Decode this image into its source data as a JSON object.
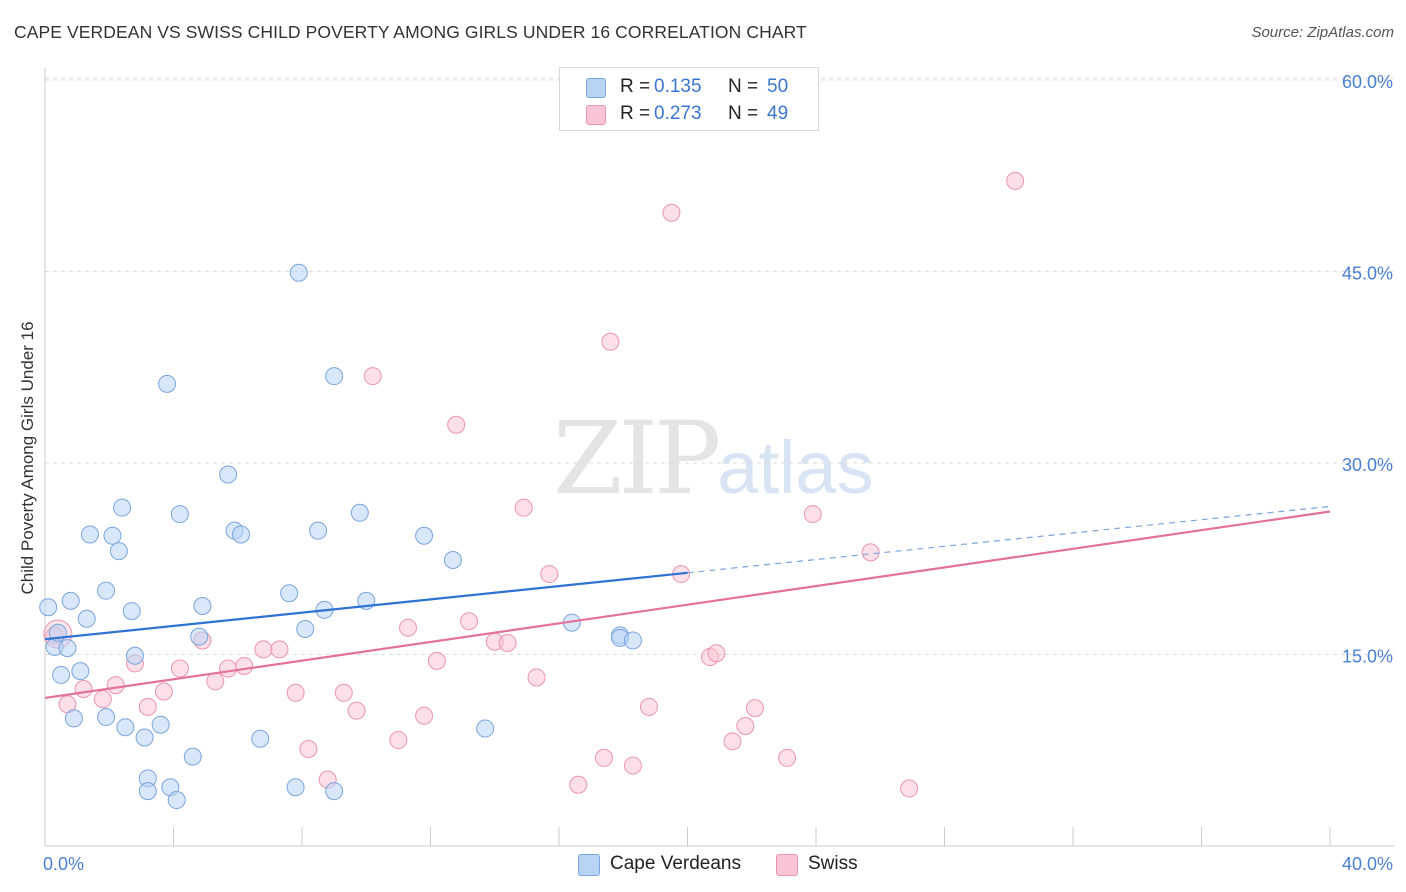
{
  "header": {
    "title": "CAPE VERDEAN VS SWISS CHILD POVERTY AMONG GIRLS UNDER 16 CORRELATION CHART",
    "source": "Source: ZipAtlas.com"
  },
  "watermark": {
    "zip": "ZIP",
    "atlas": "atlas"
  },
  "legend_top": [
    {
      "r_label": "R =",
      "r_value": "0.135",
      "n_label": "N =",
      "n_value": "50"
    },
    {
      "r_label": "R =",
      "r_value": "0.273",
      "n_label": "N =",
      "n_value": "49"
    }
  ],
  "legend_bottom": [
    {
      "label": "Cape Verdeans"
    },
    {
      "label": "Swiss"
    }
  ],
  "colors": {
    "blue_fill": "#b9d3f5",
    "blue_stroke": "#7aa5dd",
    "blue_line": "#2e72d2",
    "pink_fill": "#f9c4d4",
    "pink_stroke": "#ec95b1",
    "pink_line": "#e3729a",
    "tick": "#4a7fd1",
    "grid": "#dddddd"
  },
  "chart_data": {
    "type": "scatter",
    "ylabel": "Child Poverty Among Girls Under 16",
    "xlim": [
      0,
      40
    ],
    "ylim": [
      0,
      60
    ],
    "x_tick_labels": [
      "0.0%",
      "40.0%"
    ],
    "y_ticks": [
      15,
      30,
      45,
      60
    ],
    "y_tick_labels": [
      "15.0%",
      "30.0%",
      "45.0%",
      "60.0%"
    ],
    "grid": "horizontal dashed",
    "series": [
      {
        "name": "Cape Verdeans",
        "color": "#b9d3f5",
        "points": [
          [
            0.1,
            18.7
          ],
          [
            0.3,
            15.6
          ],
          [
            0.4,
            16.7
          ],
          [
            0.5,
            13.4
          ],
          [
            0.7,
            15.5
          ],
          [
            0.8,
            19.2
          ],
          [
            0.9,
            10.0
          ],
          [
            1.1,
            13.7
          ],
          [
            1.3,
            17.8
          ],
          [
            1.4,
            24.4
          ],
          [
            1.9,
            10.1
          ],
          [
            1.9,
            20.0
          ],
          [
            2.1,
            24.3
          ],
          [
            2.3,
            23.1
          ],
          [
            2.4,
            26.5
          ],
          [
            2.5,
            9.3
          ],
          [
            2.7,
            18.4
          ],
          [
            2.8,
            14.9
          ],
          [
            3.1,
            8.5
          ],
          [
            3.2,
            5.3
          ],
          [
            3.2,
            4.3
          ],
          [
            3.6,
            9.5
          ],
          [
            3.8,
            36.2
          ],
          [
            3.9,
            4.6
          ],
          [
            4.1,
            3.6
          ],
          [
            4.2,
            26.0
          ],
          [
            4.6,
            7.0
          ],
          [
            4.8,
            16.4
          ],
          [
            4.9,
            18.8
          ],
          [
            5.7,
            29.1
          ],
          [
            5.9,
            24.7
          ],
          [
            6.1,
            24.4
          ],
          [
            6.7,
            8.4
          ],
          [
            7.6,
            19.8
          ],
          [
            7.8,
            4.6
          ],
          [
            7.9,
            44.9
          ],
          [
            8.1,
            17.0
          ],
          [
            8.5,
            24.7
          ],
          [
            8.7,
            18.5
          ],
          [
            9.0,
            36.8
          ],
          [
            9.0,
            4.3
          ],
          [
            9.8,
            26.1
          ],
          [
            10.0,
            19.2
          ],
          [
            11.8,
            24.3
          ],
          [
            12.7,
            22.4
          ],
          [
            13.7,
            9.2
          ],
          [
            16.4,
            17.5
          ],
          [
            17.9,
            16.5
          ],
          [
            17.9,
            16.3
          ],
          [
            18.3,
            16.1
          ]
        ]
      },
      {
        "name": "Swiss",
        "color": "#f9c4d4",
        "points": [
          [
            0.3,
            16.5
          ],
          [
            0.7,
            11.1
          ],
          [
            1.2,
            12.3
          ],
          [
            1.8,
            11.5
          ],
          [
            2.2,
            12.6
          ],
          [
            2.8,
            14.3
          ],
          [
            3.2,
            10.9
          ],
          [
            3.7,
            12.1
          ],
          [
            4.2,
            13.9
          ],
          [
            4.9,
            16.1
          ],
          [
            5.3,
            12.9
          ],
          [
            5.7,
            13.9
          ],
          [
            6.2,
            14.1
          ],
          [
            6.8,
            15.4
          ],
          [
            7.3,
            15.4
          ],
          [
            7.8,
            12.0
          ],
          [
            8.2,
            7.6
          ],
          [
            8.8,
            5.2
          ],
          [
            9.3,
            12.0
          ],
          [
            9.7,
            10.6
          ],
          [
            10.2,
            36.8
          ],
          [
            11.0,
            8.3
          ],
          [
            11.3,
            17.1
          ],
          [
            11.8,
            10.2
          ],
          [
            12.2,
            14.5
          ],
          [
            12.8,
            33.0
          ],
          [
            13.2,
            17.6
          ],
          [
            14.0,
            16.0
          ],
          [
            14.4,
            15.9
          ],
          [
            14.9,
            26.5
          ],
          [
            15.3,
            13.2
          ],
          [
            15.7,
            21.3
          ],
          [
            16.6,
            4.8
          ],
          [
            17.4,
            6.9
          ],
          [
            17.6,
            39.5
          ],
          [
            18.3,
            6.3
          ],
          [
            18.8,
            10.9
          ],
          [
            19.5,
            49.6
          ],
          [
            19.8,
            21.3
          ],
          [
            20.7,
            14.8
          ],
          [
            20.9,
            15.1
          ],
          [
            21.4,
            8.2
          ],
          [
            21.8,
            9.4
          ],
          [
            22.1,
            10.8
          ],
          [
            23.1,
            6.9
          ],
          [
            23.9,
            26.0
          ],
          [
            25.7,
            23.0
          ],
          [
            26.9,
            4.5
          ],
          [
            30.2,
            52.1
          ]
        ]
      }
    ],
    "trend_lines": [
      {
        "series": "Cape Verdeans",
        "x_start": 0,
        "y_start": 16.2,
        "x_end": 20,
        "y_end": 21.4,
        "x_dash_end": 40,
        "y_dash_end": 26.6
      },
      {
        "series": "Swiss",
        "x_start": 0,
        "y_start": 11.6,
        "x_end": 40,
        "y_end": 26.2
      }
    ]
  }
}
